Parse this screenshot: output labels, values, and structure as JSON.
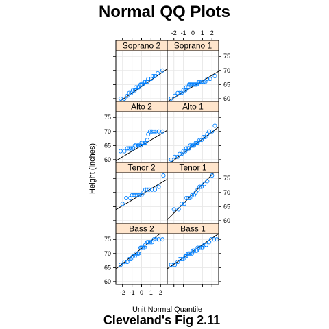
{
  "colors": {
    "strip_bg": "#ffe5cc",
    "points": "#0080ff",
    "grid": "#e8e8e8",
    "line": "#000000"
  },
  "chart_data": {
    "type": "scatter",
    "title": "Normal QQ Plots",
    "subtitle": "Cleveland's Fig 2.11",
    "xlabel": "Unit Normal Quantile",
    "ylabel": "Height (inches)",
    "xlim": [
      -2.7,
      2.7
    ],
    "ylim": [
      59,
      77
    ],
    "xticks": [
      -2,
      -1,
      0,
      1,
      2
    ],
    "yticks": [
      60,
      65,
      70,
      75
    ],
    "grid": true,
    "layout": "2 columns x 4 rows",
    "panels": [
      {
        "name": "Soprano 2",
        "col": 0,
        "row": 0,
        "line": {
          "intercept": 64.3,
          "slope": 2.3
        },
        "points": [
          [
            -2.2,
            60
          ],
          [
            -1.8,
            60
          ],
          [
            -1.5,
            61
          ],
          [
            -1.3,
            62
          ],
          [
            -1.1,
            62
          ],
          [
            -0.9,
            63
          ],
          [
            -0.7,
            63
          ],
          [
            -0.6,
            64
          ],
          [
            -0.4,
            64
          ],
          [
            -0.3,
            64
          ],
          [
            -0.1,
            65
          ],
          [
            0.0,
            65
          ],
          [
            0.1,
            65
          ],
          [
            0.3,
            66
          ],
          [
            0.4,
            66
          ],
          [
            0.6,
            66
          ],
          [
            0.7,
            67
          ],
          [
            1.0,
            67
          ],
          [
            1.2,
            68
          ],
          [
            1.4,
            68
          ],
          [
            1.7,
            69
          ],
          [
            2.2,
            70
          ]
        ]
      },
      {
        "name": "Soprano 1",
        "col": 1,
        "row": 0,
        "line": {
          "intercept": 64.3,
          "slope": 2.0
        },
        "points": [
          [
            -2.3,
            60
          ],
          [
            -1.9,
            61
          ],
          [
            -1.6,
            62
          ],
          [
            -1.4,
            62
          ],
          [
            -1.2,
            62
          ],
          [
            -1.0,
            63
          ],
          [
            -0.8,
            63
          ],
          [
            -0.7,
            64
          ],
          [
            -0.5,
            64
          ],
          [
            -0.4,
            65
          ],
          [
            -0.3,
            65
          ],
          [
            -0.2,
            65
          ],
          [
            -0.1,
            65
          ],
          [
            0.1,
            65
          ],
          [
            0.2,
            65
          ],
          [
            0.3,
            65
          ],
          [
            0.4,
            65
          ],
          [
            0.6,
            66
          ],
          [
            0.7,
            66
          ],
          [
            0.9,
            66
          ],
          [
            1.1,
            66
          ],
          [
            1.3,
            66
          ],
          [
            1.5,
            67
          ],
          [
            1.8,
            67
          ],
          [
            2.3,
            68
          ]
        ]
      },
      {
        "name": "Alto 2",
        "col": 0,
        "row": 1,
        "line": {
          "intercept": 65.0,
          "slope": 2.0
        },
        "points": [
          [
            -2.2,
            63
          ],
          [
            -1.8,
            63
          ],
          [
            -1.5,
            64
          ],
          [
            -1.3,
            64
          ],
          [
            -1.1,
            64
          ],
          [
            -0.9,
            64
          ],
          [
            -0.7,
            65
          ],
          [
            -0.6,
            65
          ],
          [
            -0.4,
            65
          ],
          [
            -0.3,
            65
          ],
          [
            -0.1,
            65
          ],
          [
            0.0,
            66
          ],
          [
            0.1,
            66
          ],
          [
            0.3,
            66
          ],
          [
            0.4,
            66
          ],
          [
            0.6,
            67
          ],
          [
            0.7,
            69
          ],
          [
            0.9,
            70
          ],
          [
            1.1,
            70
          ],
          [
            1.3,
            70
          ],
          [
            1.5,
            70
          ],
          [
            1.8,
            70
          ],
          [
            2.2,
            70
          ]
        ]
      },
      {
        "name": "Alto 1",
        "col": 1,
        "row": 1,
        "line": {
          "intercept": 64.8,
          "slope": 2.5
        },
        "points": [
          [
            -2.3,
            60
          ],
          [
            -1.9,
            61
          ],
          [
            -1.6,
            61
          ],
          [
            -1.4,
            62
          ],
          [
            -1.2,
            62
          ],
          [
            -1.0,
            63
          ],
          [
            -0.8,
            63
          ],
          [
            -0.7,
            64
          ],
          [
            -0.5,
            64
          ],
          [
            -0.4,
            64
          ],
          [
            -0.3,
            65
          ],
          [
            -0.1,
            65
          ],
          [
            0.0,
            65
          ],
          [
            0.1,
            65
          ],
          [
            0.3,
            66
          ],
          [
            0.4,
            66
          ],
          [
            0.5,
            66
          ],
          [
            0.7,
            67
          ],
          [
            0.9,
            67
          ],
          [
            1.1,
            68
          ],
          [
            1.3,
            68
          ],
          [
            1.5,
            69
          ],
          [
            1.7,
            70
          ],
          [
            2.0,
            70
          ],
          [
            2.3,
            72
          ]
        ]
      },
      {
        "name": "Tenor 2",
        "col": 0,
        "row": 2,
        "line": {
          "intercept": 69.3,
          "slope": 2.0
        },
        "points": [
          [
            -2.0,
            66
          ],
          [
            -1.6,
            68
          ],
          [
            -1.2,
            68
          ],
          [
            -1.0,
            69
          ],
          [
            -0.8,
            69
          ],
          [
            -0.6,
            69
          ],
          [
            -0.4,
            69
          ],
          [
            -0.2,
            69
          ],
          [
            0.0,
            69
          ],
          [
            0.2,
            70
          ],
          [
            0.4,
            71
          ],
          [
            0.6,
            71
          ],
          [
            0.8,
            71
          ],
          [
            1.1,
            71
          ],
          [
            1.4,
            71
          ],
          [
            1.8,
            72
          ],
          [
            2.3,
            76
          ]
        ]
      },
      {
        "name": "Tenor 1",
        "col": 1,
        "row": 2,
        "line": {
          "intercept": 69.5,
          "slope": 3.4
        },
        "points": [
          [
            -2.0,
            64
          ],
          [
            -1.5,
            64
          ],
          [
            -1.2,
            66
          ],
          [
            -0.9,
            66
          ],
          [
            -0.7,
            68
          ],
          [
            -0.5,
            68
          ],
          [
            -0.3,
            68
          ],
          [
            -0.1,
            69
          ],
          [
            0.1,
            69
          ],
          [
            0.3,
            70
          ],
          [
            0.5,
            71
          ],
          [
            0.7,
            72
          ],
          [
            0.9,
            72
          ],
          [
            1.2,
            73
          ],
          [
            1.5,
            74
          ],
          [
            2.0,
            76
          ]
        ]
      },
      {
        "name": "Bass 2",
        "col": 0,
        "row": 3,
        "line": {
          "intercept": 71.8,
          "slope": 2.7
        },
        "points": [
          [
            -2.2,
            66
          ],
          [
            -1.8,
            67
          ],
          [
            -1.5,
            67
          ],
          [
            -1.3,
            68
          ],
          [
            -1.1,
            68
          ],
          [
            -0.9,
            69
          ],
          [
            -0.7,
            69
          ],
          [
            -0.6,
            70
          ],
          [
            -0.4,
            70
          ],
          [
            -0.3,
            70
          ],
          [
            -0.1,
            72
          ],
          [
            0.0,
            72
          ],
          [
            0.1,
            72
          ],
          [
            0.3,
            72
          ],
          [
            0.4,
            73
          ],
          [
            0.6,
            74
          ],
          [
            0.7,
            74
          ],
          [
            0.9,
            74
          ],
          [
            1.1,
            74
          ],
          [
            1.3,
            75
          ],
          [
            1.5,
            75
          ],
          [
            1.8,
            75
          ],
          [
            2.2,
            75
          ]
        ]
      },
      {
        "name": "Bass 1",
        "col": 1,
        "row": 3,
        "line": {
          "intercept": 70.8,
          "slope": 2.3
        },
        "points": [
          [
            -2.3,
            66
          ],
          [
            -1.9,
            66
          ],
          [
            -1.6,
            67
          ],
          [
            -1.4,
            68
          ],
          [
            -1.2,
            68
          ],
          [
            -1.0,
            68
          ],
          [
            -0.8,
            69
          ],
          [
            -0.7,
            69
          ],
          [
            -0.5,
            70
          ],
          [
            -0.4,
            70
          ],
          [
            -0.3,
            70
          ],
          [
            -0.1,
            70
          ],
          [
            0.0,
            71
          ],
          [
            0.1,
            71
          ],
          [
            0.3,
            71
          ],
          [
            0.4,
            71
          ],
          [
            0.5,
            72
          ],
          [
            0.7,
            72
          ],
          [
            0.9,
            72
          ],
          [
            1.0,
            72
          ],
          [
            1.2,
            73
          ],
          [
            1.4,
            73
          ],
          [
            1.7,
            74
          ],
          [
            1.9,
            75
          ],
          [
            2.2,
            75
          ],
          [
            2.5,
            75
          ]
        ]
      }
    ]
  }
}
